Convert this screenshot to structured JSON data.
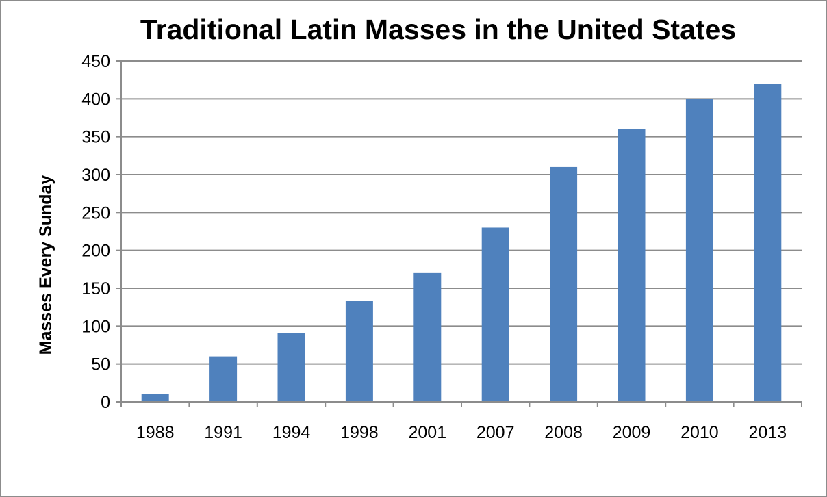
{
  "chart_data": {
    "type": "bar",
    "title": "Traditional Latin Masses in the United States",
    "xlabel": "",
    "ylabel": "Masses Every Sunday",
    "categories": [
      "1988",
      "1991",
      "1994",
      "1998",
      "2001",
      "2007",
      "2008",
      "2009",
      "2010",
      "2013"
    ],
    "series": [
      {
        "values": [
          10,
          60,
          91,
          133,
          170,
          230,
          310,
          360,
          400,
          420
        ],
        "color": "#4f81bd"
      }
    ],
    "ylim": [
      0,
      450
    ],
    "yticks": [
      0,
      50,
      100,
      150,
      200,
      250,
      300,
      350,
      400,
      450
    ],
    "grid": true,
    "legend": "none",
    "gridline_color": "#8c8c8c"
  }
}
